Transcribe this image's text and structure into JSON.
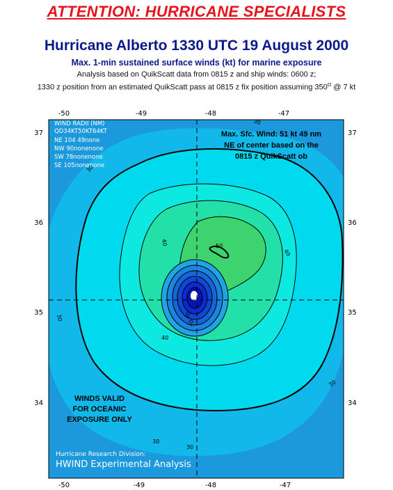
{
  "header": {
    "attention": "ATTENTION: HURRICANE SPECIALISTS",
    "title": "Hurricane Alberto 1330 UTC 19 August 2000",
    "subtitle": "Max. 1-min sustained surface winds (kt) for marine exposure",
    "analysis_line1": "Analysis based on QuikScatt data from 0815 z and ship winds: 0600 z;",
    "analysis_line2_pre": "1330 z position from an estimated QuikScatt pass at 0815 z  fix position assuming 350",
    "analysis_line2_sup": "O",
    "analysis_line2_post": " @ 7 kt"
  },
  "map": {
    "x_ticks": [
      "-50",
      "-49",
      "-48",
      "-47"
    ],
    "y_ticks": [
      "37",
      "36",
      "35",
      "34"
    ],
    "wind_radii": {
      "title": "WIND RADII (NM)",
      "header": "QD34KT50KT64KT",
      "rows": [
        "NE 104   49none",
        "NW  90nonenone",
        "SW  78nonenone",
        "SE 105nonenone"
      ]
    },
    "max_wind_note": [
      "Max. Sfc. Wind: 51 kt 49 nm",
      "NE of center based on the",
      "0815 z QuikScatt ob"
    ],
    "valid_note": [
      "WINDS VALID",
      "FOR OCEANIC",
      "EXPOSURE ONLY"
    ],
    "credit_small": "Hurricane Research Division:",
    "credit_large": "HWIND Experimental Analysis",
    "contour_labels": {
      "c30_ul": "30",
      "c30_left": "30",
      "c30_right": "30",
      "c30_br": "30",
      "c30_bot": "30",
      "c40_left": "40",
      "c40_right": "40",
      "c40_bot": "40",
      "c50": "50",
      "c20": "20",
      "c10": "10"
    },
    "colors": {
      "outer": "#1e9fe0",
      "band30": "#00d9ee",
      "band40": "#0de8e0",
      "band40b": "#22e0a8",
      "band50": "#3dd36f",
      "inner": "#0a2ad4",
      "eye": "#ffffff"
    }
  }
}
